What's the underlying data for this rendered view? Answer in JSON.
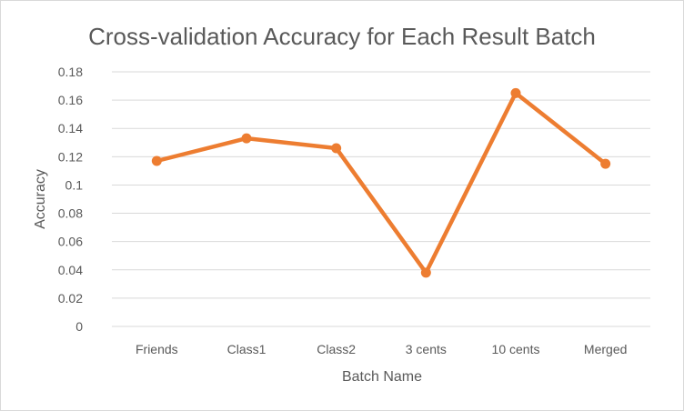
{
  "chart_data": {
    "type": "line",
    "title": "Cross-validation Accuracy for Each Result Batch",
    "xlabel": "Batch Name",
    "ylabel": "Accuracy",
    "categories": [
      "Friends",
      "Class1",
      "Class2",
      "3 cents",
      "10 cents",
      "Merged"
    ],
    "series": [
      {
        "values": [
          0.117,
          0.133,
          0.126,
          0.038,
          0.165,
          0.115
        ]
      }
    ],
    "ylim": [
      0,
      0.18
    ],
    "yticks": [
      0,
      0.02,
      0.04,
      0.06,
      0.08,
      0.1,
      0.12,
      0.14,
      0.16,
      0.18
    ],
    "ytick_labels": [
      "0",
      "0.02",
      "0.04",
      "0.06",
      "0.08",
      "0.1",
      "0.12",
      "0.14",
      "0.16",
      "0.18"
    ],
    "grid": true,
    "legend": "none",
    "line_color": "#ED7D31",
    "grid_color": "#D9D9D9",
    "text_color": "#595959"
  }
}
